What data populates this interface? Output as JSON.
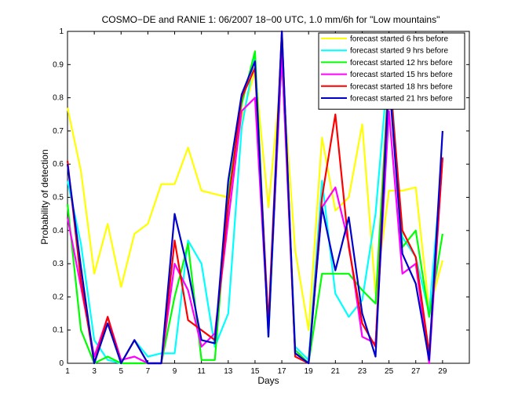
{
  "chart_data": {
    "type": "line",
    "title": "COSMO−DE and RANIE 1: 06/2007 18−00 UTC, 1.0 mm/6h for \"Low mountains\"",
    "xlabel": "Days",
    "ylabel": "Probability of detection",
    "xlim": [
      1,
      31
    ],
    "ylim": [
      0,
      1
    ],
    "xticks": [
      1,
      3,
      5,
      7,
      9,
      11,
      13,
      15,
      17,
      19,
      21,
      23,
      25,
      27,
      29
    ],
    "yticks": [
      0,
      0.1,
      0.2,
      0.3,
      0.4,
      0.5,
      0.6,
      0.7,
      0.8,
      0.9,
      1
    ],
    "ytick_labels": [
      "0",
      "0.1",
      "0.2",
      "0.3",
      "0.4",
      "0.5",
      "0.6",
      "0.7",
      "0.8",
      "0.9",
      "1"
    ],
    "grid": false,
    "legend_position": "top-right",
    "x": [
      1,
      2,
      3,
      4,
      5,
      6,
      7,
      8,
      9,
      10,
      11,
      12,
      13,
      14,
      15,
      16,
      17,
      18,
      19,
      20,
      21,
      22,
      23,
      24,
      25,
      26,
      27,
      28,
      29
    ],
    "series": [
      {
        "name": "forecast started 6 hrs before",
        "color": "#ffff00",
        "values": [
          0.77,
          0.58,
          0.27,
          0.42,
          0.23,
          0.39,
          0.42,
          0.54,
          0.54,
          0.65,
          0.52,
          0.51,
          0.5,
          0.74,
          0.88,
          0.47,
          0.89,
          0.34,
          0.1,
          0.68,
          0.46,
          0.5,
          0.72,
          0.21,
          0.52,
          0.52,
          0.53,
          0.16,
          0.31
        ]
      },
      {
        "name": "forecast started 9 hrs before",
        "color": "#00ffff",
        "values": [
          0.55,
          0.36,
          0.07,
          0.01,
          0.0,
          0.07,
          0.02,
          0.03,
          0.03,
          0.37,
          0.3,
          0.05,
          0.15,
          0.71,
          0.93,
          0.08,
          0.95,
          0.05,
          0.01,
          0.55,
          0.21,
          0.14,
          0.19,
          0.45,
          0.92,
          0.38,
          0.32,
          0.15,
          0.62
        ]
      },
      {
        "name": "forecast started 12 hrs before",
        "color": "#00ff00",
        "values": [
          0.48,
          0.1,
          0.0,
          0.02,
          0.0,
          0.0,
          0.0,
          0.0,
          0.2,
          0.36,
          0.01,
          0.01,
          0.51,
          0.78,
          0.94,
          0.09,
          0.93,
          0.04,
          0.0,
          0.27,
          0.27,
          0.27,
          0.22,
          0.18,
          0.88,
          0.35,
          0.4,
          0.14,
          0.39
        ]
      },
      {
        "name": "forecast started 15 hrs before",
        "color": "#ff00ff",
        "values": [
          0.44,
          0.23,
          0.02,
          0.14,
          0.01,
          0.02,
          0.0,
          0.0,
          0.3,
          0.22,
          0.05,
          0.09,
          0.43,
          0.76,
          0.8,
          0.1,
          0.93,
          0.03,
          0.0,
          0.47,
          0.53,
          0.36,
          0.08,
          0.06,
          0.76,
          0.27,
          0.3,
          0.0,
          0.62
        ]
      },
      {
        "name": "forecast started 18 hrs before",
        "color": "#ff0000",
        "values": [
          0.61,
          0.25,
          0.0,
          0.14,
          0.0,
          0.07,
          0.0,
          0.0,
          0.37,
          0.13,
          0.1,
          0.07,
          0.48,
          0.8,
          0.89,
          0.12,
          1.0,
          0.02,
          0.0,
          0.5,
          0.75,
          0.35,
          0.12,
          0.05,
          0.89,
          0.4,
          0.32,
          0.03,
          0.62
        ]
      },
      {
        "name": "forecast started 21 hrs before",
        "color": "#0000cc",
        "values": [
          0.6,
          0.29,
          0.0,
          0.12,
          0.0,
          0.07,
          0.0,
          0.0,
          0.45,
          0.28,
          0.07,
          0.06,
          0.55,
          0.81,
          0.91,
          0.08,
          1.0,
          0.03,
          0.0,
          0.47,
          0.28,
          0.44,
          0.15,
          0.02,
          0.86,
          0.33,
          0.24,
          0.01,
          0.7
        ]
      }
    ]
  }
}
